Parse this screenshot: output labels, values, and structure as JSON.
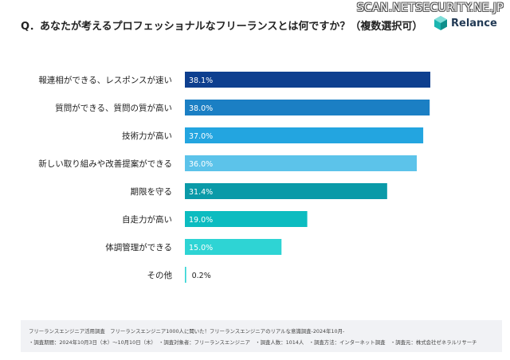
{
  "watermark": "SCAN.NETSECURITY.NE.JP",
  "question": "Q．あなたが考えるプロフェッショナルなフリーランスとは何ですか？（複数選択可）",
  "logo": {
    "text": "Relance",
    "color": "#1bb5b0"
  },
  "chart_data": {
    "type": "bar",
    "orientation": "horizontal",
    "categories": [
      "報連相ができる、レスポンスが速い",
      "質問ができる、質問の質が高い",
      "技術力が高い",
      "新しい取り組みや改善提案ができる",
      "期限を守る",
      "自走力が高い",
      "体調管理ができる",
      "その他"
    ],
    "values": [
      38.1,
      38.0,
      37.0,
      36.0,
      31.4,
      19.0,
      15.0,
      0.2
    ],
    "value_labels": [
      "38.1%",
      "38.0%",
      "37.0%",
      "36.0%",
      "31.4%",
      "19.0%",
      "15.0%",
      "0.2%"
    ],
    "colors": [
      "#0e3f8f",
      "#1b7fc4",
      "#23a5e0",
      "#5cc3ea",
      "#0a9aa8",
      "#0cbcc0",
      "#2ed4d4",
      "#2ed4d4"
    ],
    "xlim": [
      0,
      38.1
    ],
    "grid": false,
    "legend": "none"
  },
  "footer": {
    "line1": "フリーランスエンジニア活用調査　フリーランスエンジニア1000人に聞いた！フリーランスエンジニアのリアルな意識調査-2024年10月-",
    "line2": "・調査期間：2024年10月3日（木）〜10月10日（木）　・調査対象者：フリーランスエンジニア　・調査人数：1014人　・調査方法：インターネット調査　・調査元：株式会社ゼネラルリサーチ"
  }
}
